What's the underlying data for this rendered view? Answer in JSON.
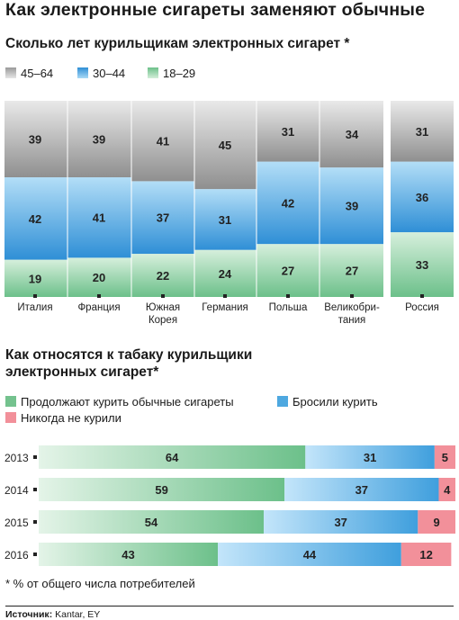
{
  "title": "Как электронные сигареты заменяют обычные",
  "chart1": {
    "subtitle": "Сколько лет курильщикам электронных сигарет *",
    "legend": [
      "45–64",
      "30–44",
      "18–29"
    ]
  },
  "chart2": {
    "subtitle": "Как относятся к табаку курильщики электронных сигарет*",
    "legend": [
      "Продолжают курить обычные сигареты",
      "Бросили курить",
      "Никогда не курили"
    ]
  },
  "footnote": "* % от общего числа потребителей",
  "source_label": "Источник:",
  "source_text": " Kantar, EY",
  "colors": {
    "gray": "#c9c9c9",
    "blue": "#4ea8e0",
    "green": "#9ad3a8",
    "pink": "#f2909a"
  },
  "chart_data": [
    {
      "type": "bar",
      "stacked": true,
      "orientation": "vertical",
      "categories": [
        "Италия",
        "Франция",
        "Южная Корея",
        "Германия",
        "Польша",
        "Великобритания",
        "Россия"
      ],
      "category_lines": [
        [
          "Италия"
        ],
        [
          "Франция"
        ],
        [
          "Южная",
          "Корея"
        ],
        [
          "Германия"
        ],
        [
          "Польша"
        ],
        [
          "Великобри-",
          "тания"
        ],
        [
          "Россия"
        ]
      ],
      "series": [
        {
          "name": "18–29",
          "values": [
            19,
            20,
            22,
            24,
            27,
            27,
            33
          ]
        },
        {
          "name": "30–44",
          "values": [
            42,
            41,
            37,
            31,
            42,
            39,
            36
          ]
        },
        {
          "name": "45–64",
          "values": [
            39,
            39,
            41,
            45,
            31,
            34,
            31
          ]
        }
      ],
      "legend_position": "top-left"
    },
    {
      "type": "bar",
      "stacked": true,
      "orientation": "horizontal",
      "categories": [
        "2013",
        "2014",
        "2015",
        "2016"
      ],
      "series": [
        {
          "name": "Продолжают курить обычные сигареты",
          "values": [
            64,
            59,
            54,
            43
          ]
        },
        {
          "name": "Бросили курить",
          "values": [
            31,
            37,
            37,
            44
          ]
        },
        {
          "name": "Никогда не курили",
          "values": [
            5,
            4,
            9,
            12
          ]
        }
      ],
      "legend_position": "top-left"
    }
  ]
}
